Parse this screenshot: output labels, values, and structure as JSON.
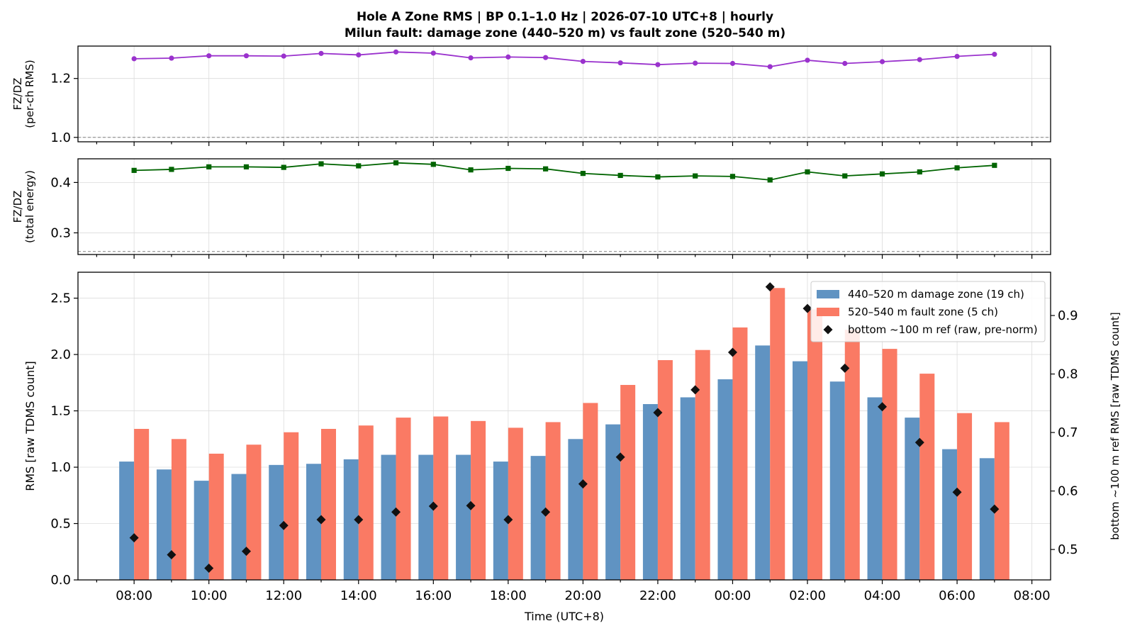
{
  "title_line1": "Hole A Zone RMS  |  BP 0.1–1.0 Hz  |  2026-07-10 UTC+8  |  hourly",
  "title_line2": "Milun fault: damage zone (440–520 m) vs fault zone (520–540 m)",
  "colors": {
    "ratio_rms": "#9a32cd",
    "ratio_energy": "#006400",
    "damage_zone": "#6093c2",
    "fault_zone": "#fa7a64",
    "ref": "#111111"
  },
  "chart_data": [
    {
      "type": "line",
      "ylabel": [
        "FZ/DZ",
        "(per-ch RMS)"
      ],
      "ylim": [
        0.985,
        1.31
      ],
      "yticks": [
        1.0,
        1.2
      ],
      "ytick_labels": [
        "1.0",
        "1.2"
      ],
      "reference_line": 1.0,
      "grid": true,
      "marker": "circle",
      "x_hours": [
        0,
        1,
        2,
        3,
        4,
        5,
        6,
        7,
        8,
        9,
        10,
        11,
        12,
        13,
        14,
        15,
        16,
        17,
        18,
        19,
        20,
        21,
        22,
        23
      ],
      "values": [
        1.267,
        1.269,
        1.277,
        1.277,
        1.276,
        1.285,
        1.28,
        1.29,
        1.286,
        1.27,
        1.273,
        1.271,
        1.258,
        1.253,
        1.247,
        1.252,
        1.251,
        1.24,
        1.262,
        1.251,
        1.257,
        1.264,
        1.275,
        1.282
      ]
    },
    {
      "type": "line",
      "ylabel": [
        "FZ/DZ",
        "(total energy)"
      ],
      "ylim": [
        0.257,
        0.447
      ],
      "yticks": [
        0.3,
        0.4
      ],
      "ytick_labels": [
        "0.3",
        "0.4"
      ],
      "reference_line": 0.263,
      "grid": true,
      "marker": "square",
      "x_hours": [
        0,
        1,
        2,
        3,
        4,
        5,
        6,
        7,
        8,
        9,
        10,
        11,
        12,
        13,
        14,
        15,
        16,
        17,
        18,
        19,
        20,
        21,
        22,
        23
      ],
      "values": [
        0.424,
        0.426,
        0.431,
        0.431,
        0.43,
        0.437,
        0.433,
        0.439,
        0.436,
        0.425,
        0.428,
        0.427,
        0.418,
        0.414,
        0.411,
        0.413,
        0.412,
        0.405,
        0.421,
        0.413,
        0.417,
        0.421,
        0.429,
        0.434
      ]
    },
    {
      "type": "bar",
      "xlabel": "Time (UTC+8)",
      "ylabel": "RMS  [raw TDMS count]",
      "ylabel_right": "bottom ~100 m ref RMS  [raw TDMS count]",
      "ylim": [
        0,
        2.73
      ],
      "yticks": [
        0.0,
        0.5,
        1.0,
        1.5,
        2.0,
        2.5
      ],
      "ytick_labels": [
        "0.0",
        "0.5",
        "1.0",
        "1.5",
        "2.0",
        "2.5"
      ],
      "ylim_right": [
        0.448,
        0.974
      ],
      "yticks_right": [
        0.5,
        0.6,
        0.7,
        0.8,
        0.9
      ],
      "ytick_labels_right": [
        "0.5",
        "0.6",
        "0.7",
        "0.8",
        "0.9"
      ],
      "xlim_hours": [
        -1.5,
        24.5
      ],
      "xticks_hours": [
        0,
        2,
        4,
        6,
        8,
        10,
        12,
        14,
        16,
        18,
        20,
        22,
        24
      ],
      "xtick_labels": [
        "08:00",
        "10:00",
        "12:00",
        "14:00",
        "16:00",
        "18:00",
        "20:00",
        "22:00",
        "00:00",
        "02:00",
        "04:00",
        "06:00",
        "08:00"
      ],
      "grid": true,
      "legend_position": "upper right",
      "x_hours": [
        0,
        1,
        2,
        3,
        4,
        5,
        6,
        7,
        8,
        9,
        10,
        11,
        12,
        13,
        14,
        15,
        16,
        17,
        18,
        19,
        20,
        21,
        22,
        23
      ],
      "series": [
        {
          "name": "440–520 m  damage zone (19 ch)",
          "kind": "bar",
          "axis": "left",
          "values": [
            1.05,
            0.98,
            0.88,
            0.94,
            1.02,
            1.03,
            1.07,
            1.11,
            1.11,
            1.11,
            1.05,
            1.1,
            1.25,
            1.38,
            1.56,
            1.62,
            1.78,
            2.08,
            1.94,
            1.76,
            1.62,
            1.44,
            1.16,
            1.08
          ]
        },
        {
          "name": "520–540 m  fault zone (5 ch)",
          "kind": "bar",
          "axis": "left",
          "values": [
            1.34,
            1.25,
            1.12,
            1.2,
            1.31,
            1.34,
            1.37,
            1.44,
            1.45,
            1.41,
            1.35,
            1.4,
            1.57,
            1.73,
            1.95,
            2.04,
            2.24,
            2.59,
            2.4,
            2.22,
            2.05,
            1.83,
            1.48,
            1.4
          ]
        },
        {
          "name": "bottom ~100 m ref (raw, pre-norm)",
          "kind": "scatter",
          "axis": "right",
          "values": [
            0.52,
            0.491,
            0.468,
            0.497,
            0.541,
            0.551,
            0.551,
            0.564,
            0.574,
            0.575,
            0.551,
            0.564,
            0.612,
            0.658,
            0.734,
            0.773,
            0.837,
            0.949,
            0.912,
            0.81,
            0.744,
            0.683,
            0.598,
            0.569
          ]
        }
      ]
    }
  ]
}
